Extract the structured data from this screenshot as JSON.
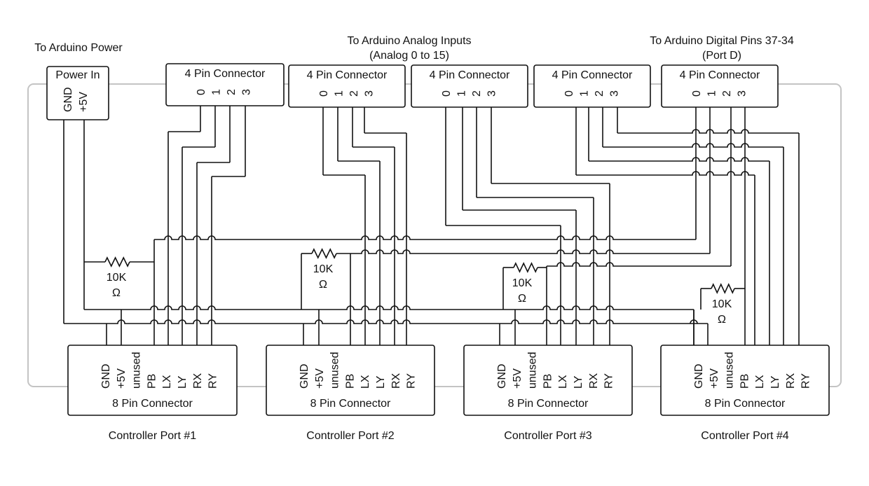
{
  "labels": {
    "arduino_power": "To Arduino Power",
    "analog_line1": "To Arduino Analog Inputs",
    "analog_line2": "(Analog 0 to 15)",
    "digital_line1": "To Arduino Digital Pins 37-34",
    "digital_line2": "(Port D)"
  },
  "power_in": {
    "title": "Power In",
    "pins": [
      "GND",
      "+5V"
    ]
  },
  "four_pin": {
    "title": "4 Pin Connector",
    "pins": [
      "0",
      "1",
      "2",
      "3"
    ]
  },
  "eight_pin": {
    "title": "8 Pin Connector",
    "pins": [
      "GND",
      "+5V",
      "unused",
      "PB",
      "LX",
      "LY",
      "RX",
      "RY"
    ]
  },
  "ports": [
    "Controller Port #1",
    "Controller Port #2",
    "Controller Port #3",
    "Controller Port #4"
  ],
  "resistor": {
    "value": "10K",
    "unit": "Ω"
  }
}
